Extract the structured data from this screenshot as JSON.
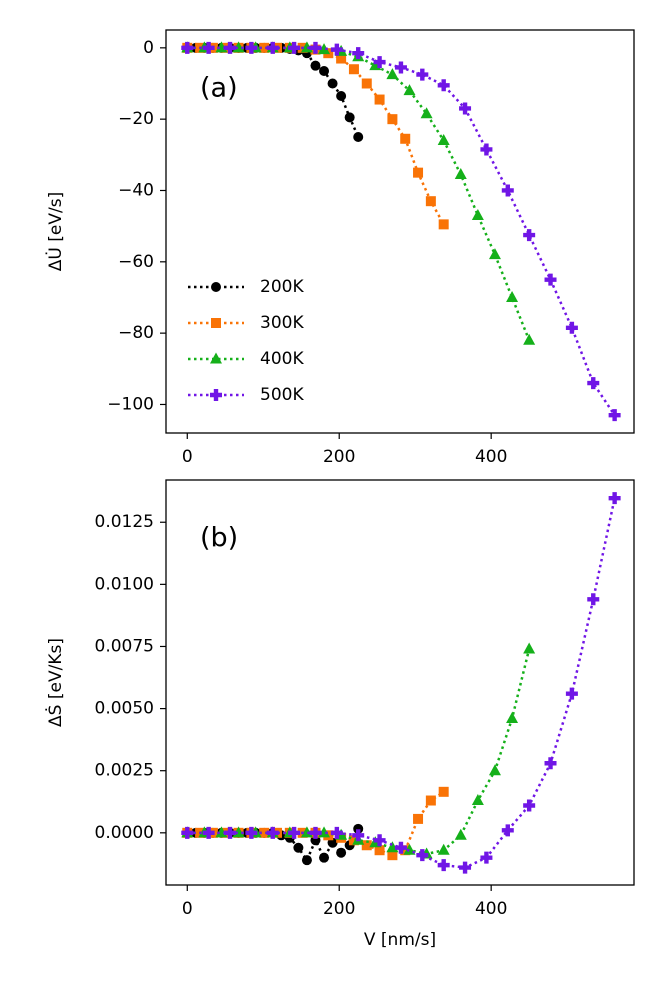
{
  "chart_data": [
    {
      "type": "line",
      "annotation": "(a)",
      "ylabel": "ΔU̇ [eV/s]",
      "legend": "lower left",
      "xlim": [
        -28,
        588
      ],
      "xticks": [
        0,
        200,
        400
      ],
      "ylim": [
        -108,
        5
      ],
      "yticks": [
        0,
        {
          "value": -20,
          "label": "−20"
        },
        {
          "value": -40,
          "label": "−40"
        },
        {
          "value": -60,
          "label": "−60"
        },
        {
          "value": -80,
          "label": "−80"
        },
        {
          "value": -100,
          "label": "−100"
        }
      ],
      "series": [
        {
          "name": "200K",
          "color": "#000000",
          "marker": "circle",
          "x": [
            0,
            11.25,
            22.5,
            33.75,
            45,
            56.25,
            67.5,
            78.75,
            90,
            101.25,
            112.5,
            123.75,
            135,
            146.25,
            157.5,
            168.75,
            180,
            191.25,
            202.5,
            213.75,
            225
          ],
          "values": [
            0,
            0,
            0,
            0,
            0,
            0,
            0,
            0,
            0,
            0,
            0,
            0,
            -0.3,
            -0.7,
            -1.5,
            -5,
            -6.5,
            -10,
            -13.5,
            -19.5,
            -25
          ]
        },
        {
          "name": "300K",
          "color": "#f97306",
          "marker": "square",
          "x": [
            0,
            16.875,
            33.75,
            50.625,
            67.5,
            84.375,
            101.25,
            118.125,
            135,
            151.875,
            168.75,
            185.625,
            202.5,
            219.375,
            236.25,
            253.125,
            270,
            286.875,
            303.75,
            320.625,
            337.5
          ],
          "values": [
            0,
            0,
            0,
            0,
            0,
            0,
            0,
            0,
            0,
            0,
            -0.5,
            -1.5,
            -3,
            -6,
            -10,
            -14.5,
            -20,
            -25.5,
            -35,
            -43,
            -49.5
          ]
        },
        {
          "name": "400K",
          "color": "#15b01a",
          "marker": "triangle",
          "x": [
            0,
            22.5,
            45,
            67.5,
            90,
            112.5,
            135,
            157.5,
            180,
            202.5,
            225,
            247.5,
            270,
            292.5,
            315,
            337.5,
            360,
            382.5,
            405,
            427.5,
            450
          ],
          "values": [
            0,
            0,
            0,
            0,
            0,
            0,
            0,
            0,
            -0.5,
            -1,
            -2.5,
            -5,
            -7.5,
            -12,
            -18.5,
            -26,
            -35.5,
            -47,
            -58,
            -70,
            -82
          ]
        },
        {
          "name": "500K",
          "color": "#7016e6",
          "marker": "plus",
          "x": [
            0,
            28.125,
            56.25,
            84.375,
            112.5,
            140.625,
            168.75,
            196.875,
            225,
            253.125,
            281.25,
            309.375,
            337.5,
            365.625,
            393.75,
            421.875,
            450,
            478.125,
            506.25,
            534.375,
            562.5
          ],
          "values": [
            0,
            0,
            0,
            0,
            0,
            0,
            0,
            -0.5,
            -1.5,
            -4,
            -5.5,
            -7.5,
            -10.5,
            -17,
            -28.5,
            -40,
            -52.5,
            -65,
            -78.5,
            -94,
            -103
          ]
        }
      ]
    },
    {
      "type": "line",
      "annotation": "(b)",
      "ylabel": "ΔṠ [eV/Ks]",
      "xlabel": "V [nm/s]",
      "xlim": [
        -28,
        588
      ],
      "xticks": [
        0,
        200,
        400
      ],
      "ylim": [
        -0.0021,
        0.0142
      ],
      "yticks": [
        {
          "value": 0,
          "label": "0.0000"
        },
        {
          "value": 0.0025,
          "label": "0.0025"
        },
        {
          "value": 0.005,
          "label": "0.0050"
        },
        {
          "value": 0.0075,
          "label": "0.0075"
        },
        {
          "value": 0.01,
          "label": "0.0100"
        },
        {
          "value": 0.0125,
          "label": "0.0125"
        }
      ],
      "series": [
        {
          "color": "#000000",
          "marker": "circle",
          "x": [
            0,
            11.25,
            22.5,
            33.75,
            45,
            56.25,
            67.5,
            78.75,
            90,
            101.25,
            112.5,
            123.75,
            135,
            146.25,
            157.5,
            168.75,
            180,
            191.25,
            202.5,
            213.75,
            225
          ],
          "values": [
            0,
            0,
            0,
            0,
            0,
            0,
            0,
            0,
            0,
            0,
            0,
            -0.0001,
            -0.0002,
            -0.0006,
            -0.0011,
            -0.0003,
            -0.001,
            -0.0004,
            -0.0008,
            -0.0005,
            0.00016
          ]
        },
        {
          "color": "#f97306",
          "marker": "square",
          "x": [
            0,
            16.875,
            33.75,
            50.625,
            67.5,
            84.375,
            101.25,
            118.125,
            135,
            151.875,
            168.75,
            185.625,
            202.5,
            219.375,
            236.25,
            253.125,
            270,
            286.875,
            303.75,
            320.625,
            337.5
          ],
          "values": [
            0,
            0,
            0,
            0,
            0,
            0,
            0,
            0,
            0,
            0,
            0,
            -0.0001,
            -0.0002,
            -0.0003,
            -0.0005,
            -0.0007,
            -0.0009,
            -0.0007,
            0.00056,
            0.0013,
            0.00165
          ]
        },
        {
          "color": "#15b01a",
          "marker": "triangle",
          "x": [
            0,
            22.5,
            45,
            67.5,
            90,
            112.5,
            135,
            157.5,
            180,
            202.5,
            225,
            247.5,
            270,
            292.5,
            315,
            337.5,
            360,
            382.5,
            405,
            427.5,
            450
          ],
          "values": [
            0,
            0,
            0,
            0,
            0,
            0,
            0,
            0,
            0,
            -0.0001,
            -0.0003,
            -0.0004,
            -0.0006,
            -0.0007,
            -0.00085,
            -0.0007,
            -0.0001,
            0.0013,
            0.0025,
            0.0046,
            0.0074
          ]
        },
        {
          "color": "#7016e6",
          "marker": "plus",
          "x": [
            0,
            28.125,
            56.25,
            84.375,
            112.5,
            140.625,
            168.75,
            196.875,
            225,
            253.125,
            281.25,
            309.375,
            337.5,
            365.625,
            393.75,
            421.875,
            450,
            478.125,
            506.25,
            534.375,
            562.5
          ],
          "values": [
            0,
            0,
            0,
            0,
            0,
            0,
            0,
            0,
            -0.0001,
            -0.0003,
            -0.0006,
            -0.0009,
            -0.0013,
            -0.0014,
            -0.001,
            0.0001,
            0.0011,
            0.0028,
            0.0056,
            0.0094,
            0.01347
          ]
        }
      ]
    }
  ]
}
